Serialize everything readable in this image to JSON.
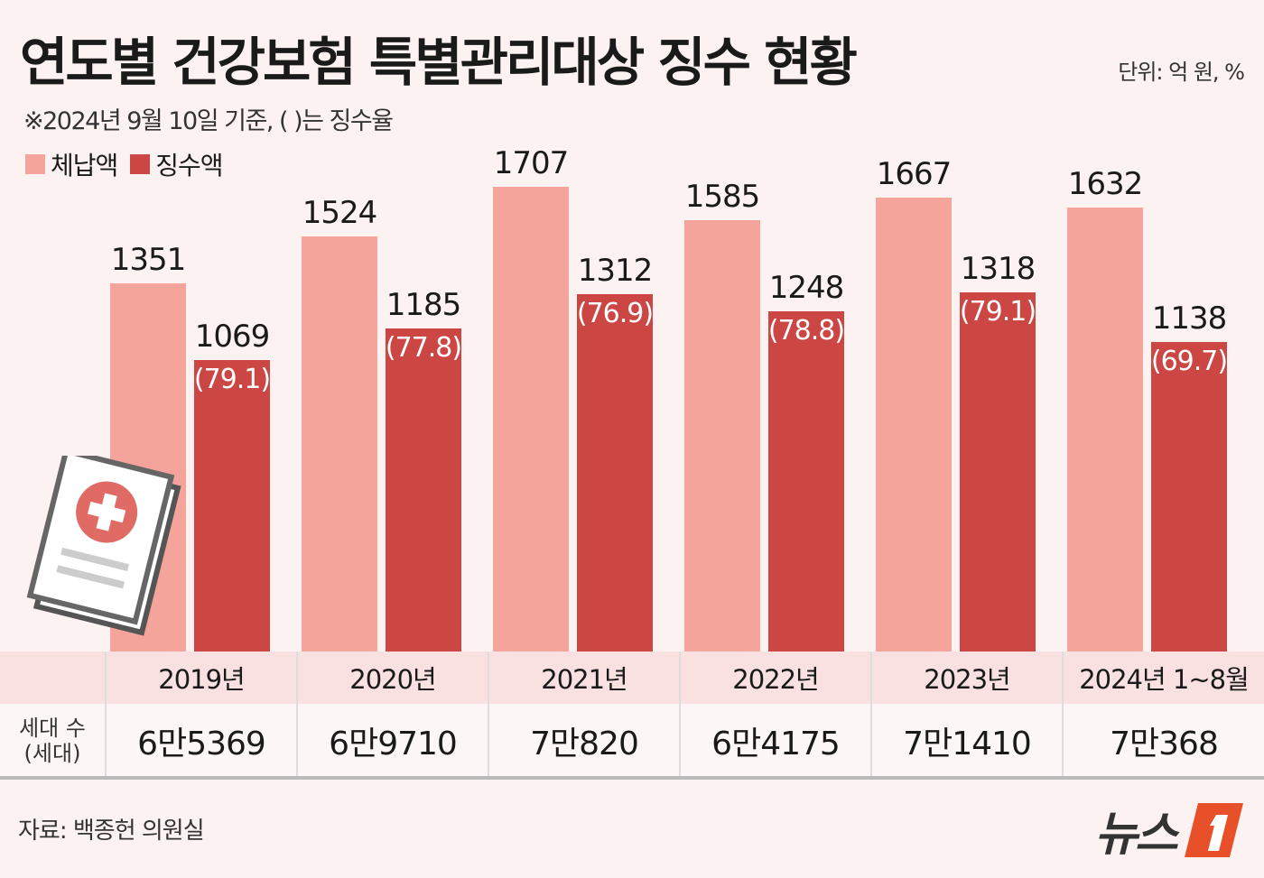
{
  "title": "연도별 건강보험 특별관리대상 징수 현황",
  "unit": "단위: 억 원, %",
  "note": "※2024년 9월 10일 기준, ( )는 징수율",
  "source": "자료: 백종헌 의원실",
  "logo": {
    "text": "뉴스",
    "mark": "1"
  },
  "colors": {
    "arrears": "#f4a49a",
    "collected": "#cc4643",
    "background": "#fdf2f2",
    "logo_accent": "#e8502a"
  },
  "table": {
    "row_label_line1": "세대 수",
    "row_label_line2": "(세대)",
    "households": [
      "6만5369",
      "6만9710",
      "7만820",
      "6만4175",
      "7만1410",
      "7만368"
    ]
  },
  "chart_data": {
    "type": "bar",
    "title": "연도별 건강보험 특별관리대상 징수 현황",
    "categories": [
      "2019년",
      "2020년",
      "2021년",
      "2022년",
      "2023년",
      "2024년 1~8월"
    ],
    "series": [
      {
        "name": "체납액",
        "values": [
          1351,
          1524,
          1707,
          1585,
          1667,
          1632
        ]
      },
      {
        "name": "징수액",
        "values": [
          1069,
          1185,
          1312,
          1248,
          1318,
          1138
        ],
        "rates": [
          "(79.1)",
          "(77.8)",
          "(76.9)",
          "(78.8)",
          "(79.1)",
          "(69.7)"
        ]
      }
    ],
    "ylim": [
      0,
      2393
    ],
    "grid": false,
    "legend": "top-left"
  }
}
